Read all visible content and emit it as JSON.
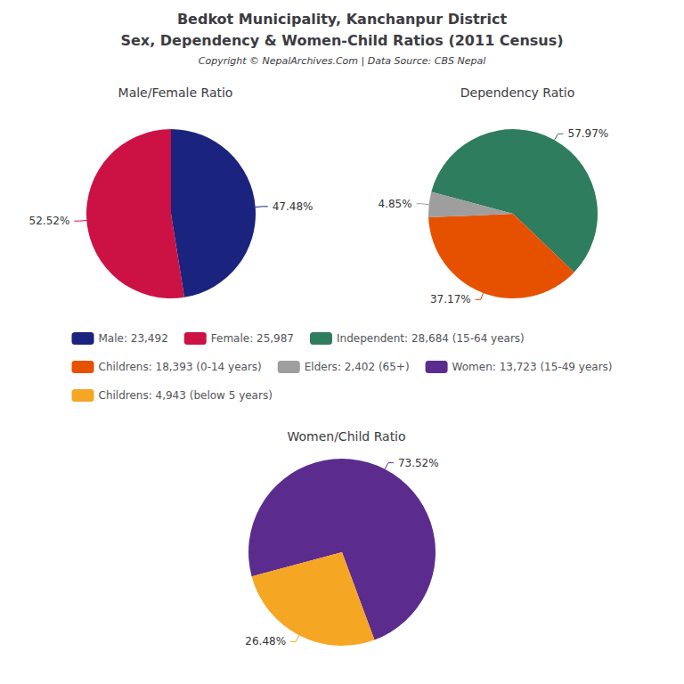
{
  "title": "Bedkot Municipality, Kanchanpur District",
  "subtitle": "Sex, Dependency & Women-Child Ratios (2011 Census)",
  "annotations": [
    "Copyright © NepalArchives.Com | Data Source: CBS Nepal"
  ],
  "chart_data": [
    {
      "type": "pie",
      "title": "Male/Female Ratio",
      "categories": [
        "Male: 23,492",
        "Female: 25,987"
      ],
      "values": [
        47.48,
        52.52
      ],
      "value_labels": [
        "47.48%",
        "52.52%"
      ],
      "colors": [
        "#1a237e",
        "#cc1144"
      ],
      "data_labels": true,
      "legend": "center"
    },
    {
      "type": "pie",
      "title": "Dependency Ratio",
      "categories": [
        "Independent: 28,684 (15-64 years)",
        "Childrens: 18,393 (0-14 years)",
        "Elders: 2,402 (65+)"
      ],
      "values": [
        57.97,
        37.17,
        4.85
      ],
      "value_labels": [
        "57.97%",
        "37.17%",
        "4.85%"
      ],
      "colors": [
        "#2e7d5e",
        "#e65100",
        "#9e9e9e"
      ],
      "data_labels": true,
      "legend": "center"
    },
    {
      "type": "pie",
      "title": "Women/Child Ratio",
      "categories": [
        "Women: 13,723 (15-49 years)",
        "Childrens: 4,943 (below 5 years)"
      ],
      "values": [
        73.52,
        26.48
      ],
      "value_labels": [
        "73.52%",
        "26.48%"
      ],
      "colors": [
        "#5b2c8d",
        "#f5a623"
      ],
      "data_labels": true,
      "legend": "center"
    }
  ]
}
